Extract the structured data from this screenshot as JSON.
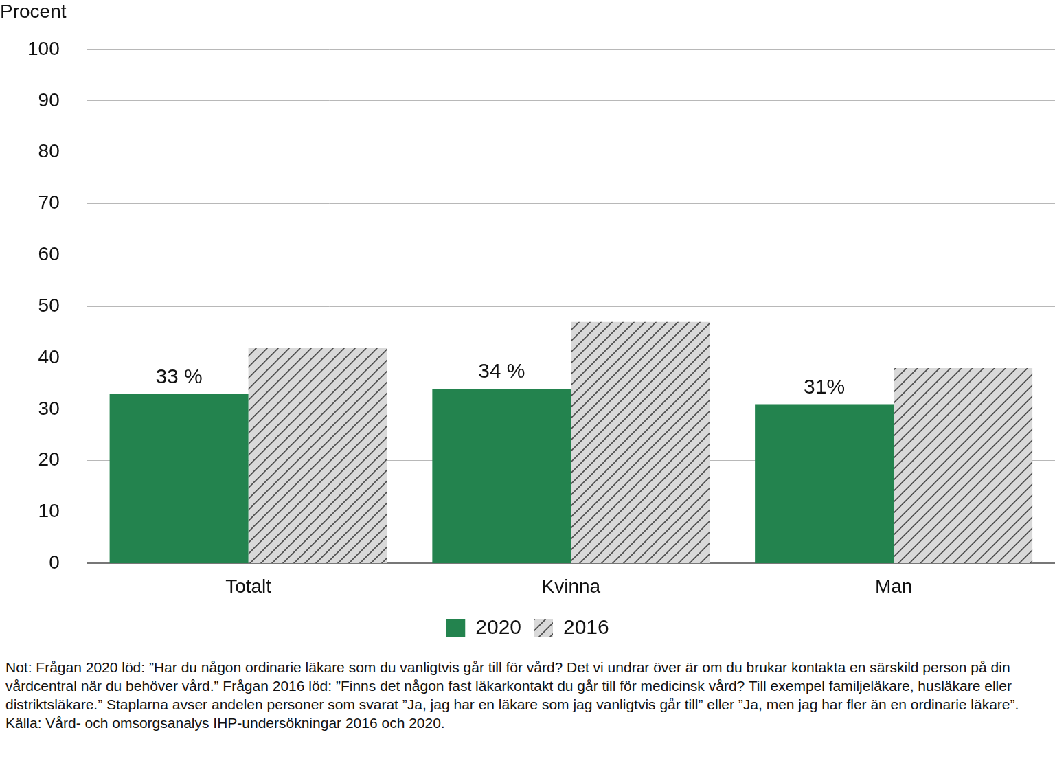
{
  "chart_data": {
    "type": "bar",
    "ylabel": "Procent",
    "categories": [
      "Totalt",
      "Kvinna",
      "Man"
    ],
    "series": [
      {
        "name": "2020",
        "color": "#23834e",
        "values": [
          33,
          34,
          31
        ],
        "data_labels": true,
        "value_labels": [
          "33 %",
          "34 %",
          "31%"
        ]
      },
      {
        "name": "2016",
        "color": "#d9d9d9",
        "values": [
          42,
          47,
          38
        ],
        "marker": "hatch"
      }
    ],
    "ylim": [
      0,
      100
    ],
    "yticks": [
      0,
      10,
      20,
      30,
      40,
      50,
      60,
      70,
      80,
      90,
      100
    ],
    "grid": true,
    "legend": "bottom",
    "note": "Not: Frågan 2020 löd: ”Har du någon ordinarie läkare som du vanligtvis går till för vård? Det vi undrar över är om du brukar kontakta en särskild person på din vårdcentral när du behöver vård.” Frågan 2016 löd: ”Finns det någon fast läkarkontakt du går till för medicinsk vård? Till exempel familjeläkare, husläkare eller distriktsläkare.” Staplarna avser andelen personer som svarat ”Ja, jag har en läkare som jag vanligtvis går till” eller ”Ja, men jag har fler än en ordinarie läkare”.",
    "source": "Källa: Vård- och omsorgsanalys IHP-undersökningar 2016 och 2020."
  }
}
